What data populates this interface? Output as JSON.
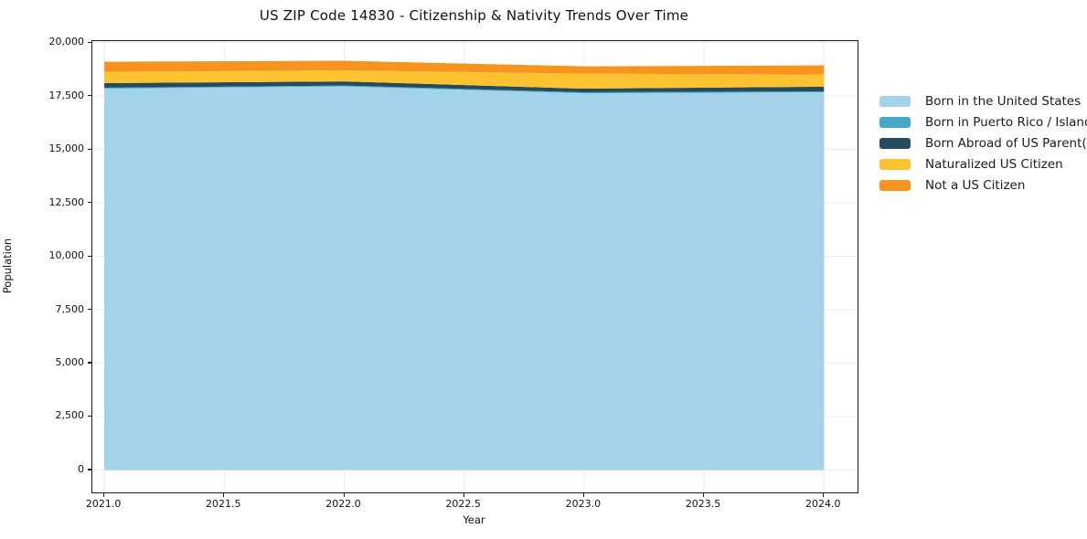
{
  "title": "US ZIP Code 14830 - Citizenship & Nativity Trends Over Time",
  "chart_data": {
    "type": "area",
    "stacked": true,
    "title": "US ZIP Code 14830 - Citizenship & Nativity Trends Over Time",
    "xlabel": "Year",
    "ylabel": "Population",
    "x": [
      2021,
      2022,
      2023,
      2024
    ],
    "series": [
      {
        "name": "Born in the United States",
        "color": "#a3d3ea",
        "values": [
          17850,
          17950,
          17630,
          17675
        ]
      },
      {
        "name": "Born in Puerto Rico / Islands",
        "color": "#45a8c6",
        "values": [
          40,
          40,
          45,
          45
        ]
      },
      {
        "name": "Born Abroad of US Parent(s)",
        "color": "#264a5e",
        "values": [
          215,
          195,
          170,
          215
        ]
      },
      {
        "name": "Naturalized US Citizen",
        "color": "#fcc230",
        "values": [
          530,
          515,
          700,
          570
        ]
      },
      {
        "name": "Not a US Citizen",
        "color": "#f7941f",
        "values": [
          470,
          450,
          345,
          430
        ]
      }
    ],
    "x_ticks": {
      "values": [
        2021.0,
        2021.5,
        2022.0,
        2022.5,
        2023.0,
        2023.5,
        2024.0
      ],
      "labels": [
        "2021.0",
        "2021.5",
        "2022.0",
        "2022.5",
        "2023.0",
        "2023.5",
        "2024.0"
      ]
    },
    "y_ticks": {
      "values": [
        0,
        2500,
        5000,
        7500,
        10000,
        12500,
        15000,
        17500,
        20000
      ],
      "labels": [
        "0",
        "2,500",
        "5,000",
        "7,500",
        "10,000",
        "12,500",
        "15,000",
        "17,500",
        "20,000"
      ]
    },
    "xlim": [
      2020.95,
      2024.14
    ],
    "ylim": [
      -1050,
      20070
    ],
    "grid": true,
    "grid_color": "#ebebeb",
    "legend_position": "outside-right"
  }
}
